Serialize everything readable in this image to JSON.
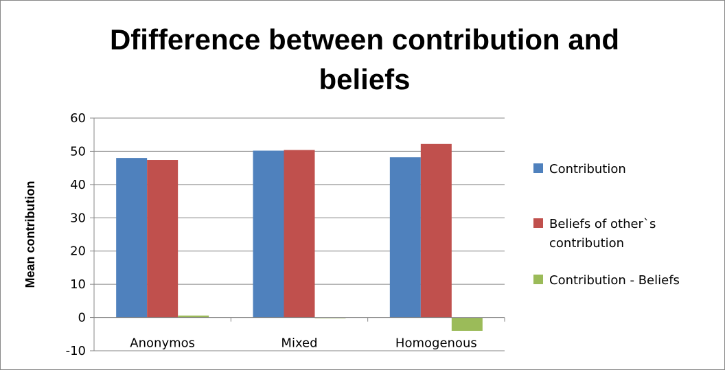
{
  "chart_data": {
    "type": "bar",
    "title": "Dfifference between contribution and beliefs",
    "title_lines": [
      "Dfifference between contribution and",
      "beliefs"
    ],
    "xlabel": "",
    "ylabel": "Mean contribution",
    "ylim": [
      -10,
      60
    ],
    "yticks": [
      -10,
      0,
      10,
      20,
      30,
      40,
      50,
      60
    ],
    "grid": true,
    "legend_position": "right",
    "categories": [
      "Anonymos",
      "Mixed",
      "Homogenous"
    ],
    "series": [
      {
        "name": "Contribution",
        "legend_lines": [
          "Contribution"
        ],
        "color": "#4F81BD",
        "values": [
          48,
          50.2,
          48.2
        ]
      },
      {
        "name": "Beliefs of other`s contribution",
        "legend_lines": [
          "Beliefs of other`s",
          "contribution"
        ],
        "color": "#C0504D",
        "values": [
          47.4,
          50.4,
          52.2
        ]
      },
      {
        "name": "Contribution - Beliefs",
        "legend_lines": [
          "Contribution - Beliefs"
        ],
        "color": "#9BBB59",
        "values": [
          0.6,
          -0.2,
          -4
        ]
      }
    ]
  }
}
